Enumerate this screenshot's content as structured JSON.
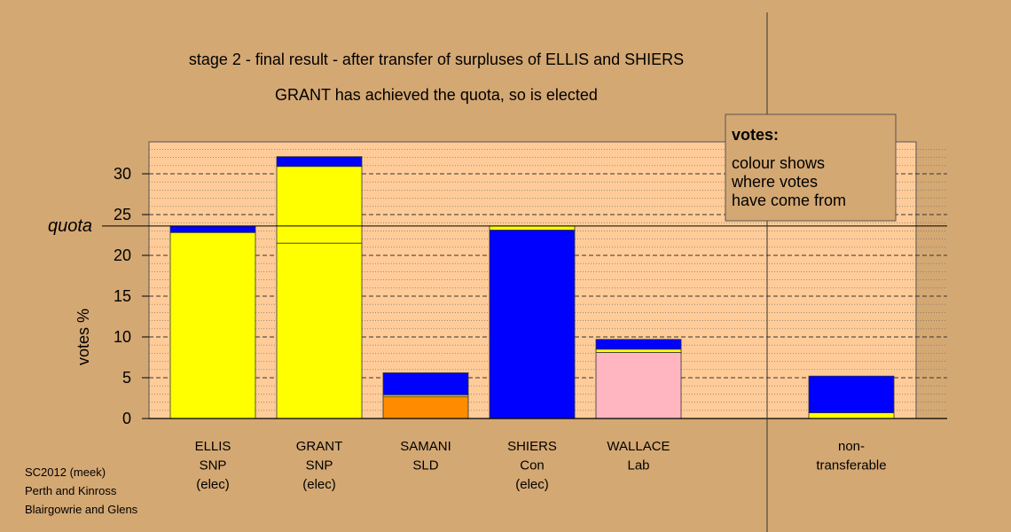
{
  "chart_data": {
    "type": "bar",
    "stacked": true,
    "title": "stage 2 - final result - after transfer of surpluses of ELLIS and SHIERS",
    "subtitle": "GRANT has achieved the quota, so is elected",
    "ylabel": "votes %",
    "ylim": [
      0,
      33
    ],
    "yticks": [
      0,
      5,
      10,
      15,
      20,
      25,
      30
    ],
    "grid": true,
    "quota": {
      "label": "quota",
      "value": 23.6
    },
    "colors": {
      "yellow": "#ffff00",
      "blue": "#0000ff",
      "orange": "#ff8c00",
      "pink": "#ffb6c1",
      "background": "#d4a873",
      "plot_bg": "#ffcc99"
    },
    "categories": [
      {
        "lines": [
          "ELLIS",
          "SNP",
          "(elec)"
        ],
        "segments": [
          {
            "color": "#ffff00",
            "value": 22.8
          },
          {
            "color": "#0000ff",
            "value": 0.8
          }
        ]
      },
      {
        "lines": [
          "GRANT",
          "SNP",
          "(elec)"
        ],
        "segments": [
          {
            "color": "#ffff00",
            "value": 21.5
          },
          {
            "color": "#ffff00",
            "value": 9.4
          },
          {
            "color": "#0000ff",
            "value": 1.2
          }
        ]
      },
      {
        "lines": [
          "SAMANI",
          "SLD"
        ],
        "segments": [
          {
            "color": "#ff8c00",
            "value": 2.7
          },
          {
            "color": "#ffff00",
            "value": 0.2
          },
          {
            "color": "#0000ff",
            "value": 2.7
          }
        ]
      },
      {
        "lines": [
          "SHIERS",
          "Con",
          "(elec)"
        ],
        "segments": [
          {
            "color": "#0000ff",
            "value": 23.1
          },
          {
            "color": "#ffff00",
            "value": 0.5
          }
        ]
      },
      {
        "lines": [
          "WALLACE",
          "Lab"
        ],
        "segments": [
          {
            "color": "#ffb6c1",
            "value": 8.1
          },
          {
            "color": "#ffff00",
            "value": 0.4
          },
          {
            "color": "#0000ff",
            "value": 1.2
          }
        ]
      },
      {
        "lines": [],
        "segments": []
      },
      {
        "lines": [
          "non-",
          "transferable"
        ],
        "segments": [
          {
            "color": "#ffff00",
            "value": 0.7
          },
          {
            "color": "#0000ff",
            "value": 4.5
          }
        ]
      }
    ],
    "legend": {
      "title": "votes:",
      "lines": [
        "colour shows",
        "where votes",
        "have come from"
      ]
    }
  },
  "footer": [
    "SC2012 (meek)",
    "Perth and Kinross",
    "Blairgowrie and Glens"
  ]
}
